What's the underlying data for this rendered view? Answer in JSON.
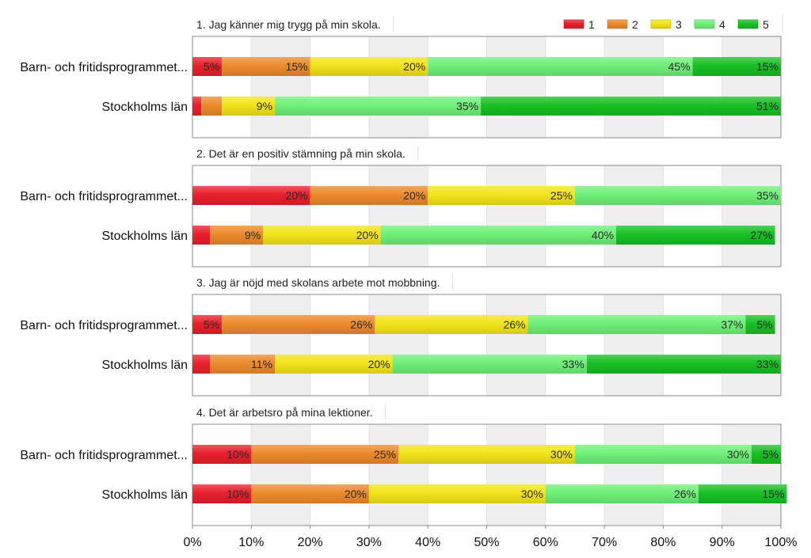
{
  "chart_data": {
    "type": "bar",
    "stacked": "percent",
    "orientation": "horizontal",
    "legend": {
      "position": "top-right",
      "entries": [
        "1",
        "2",
        "3",
        "4",
        "5"
      ],
      "colors": [
        "#e8202c",
        "#ec8a2c",
        "#f2e41a",
        "#6ff078",
        "#18c024"
      ]
    },
    "x_axis": {
      "range": [
        0,
        100
      ],
      "ticks": [
        "0%",
        "10%",
        "20%",
        "30%",
        "40%",
        "50%",
        "60%",
        "70%",
        "80%",
        "90%",
        "100%"
      ]
    },
    "panels": [
      {
        "title": "1. Jag känner mig trygg på min skola.",
        "rows": [
          {
            "label": "Barn- och fritidsprogrammet...",
            "values": [
              5,
              15,
              20,
              45,
              15
            ],
            "labels": [
              "5%",
              "15%",
              "20%",
              "45%",
              "15%"
            ]
          },
          {
            "label": "Stockholms län",
            "values": [
              1.5,
              3.5,
              9,
              35,
              51
            ],
            "labels": [
              "",
              "",
              "9%",
              "35%",
              "51%"
            ]
          }
        ]
      },
      {
        "title": "2. Det är en positiv stämning på min skola.",
        "rows": [
          {
            "label": "Barn- och fritidsprogrammet...",
            "values": [
              20,
              20,
              25,
              35,
              0
            ],
            "labels": [
              "20%",
              "20%",
              "25%",
              "35%",
              ""
            ]
          },
          {
            "label": "Stockholms län",
            "values": [
              3,
              9,
              20,
              40,
              27
            ],
            "labels": [
              "",
              "9%",
              "20%",
              "40%",
              "27%"
            ]
          }
        ]
      },
      {
        "title": "3. Jag är nöjd med skolans arbete mot mobbning.",
        "rows": [
          {
            "label": "Barn- och fritidsprogrammet...",
            "values": [
              5,
              26,
              26,
              37,
              5
            ],
            "labels": [
              "5%",
              "26%",
              "26%",
              "37%",
              "5%"
            ]
          },
          {
            "label": "Stockholms län",
            "values": [
              3,
              11,
              20,
              33,
              33
            ],
            "labels": [
              "",
              "11%",
              "20%",
              "33%",
              "33%"
            ]
          }
        ]
      },
      {
        "title": "4. Det är arbetsro på mina lektioner.",
        "rows": [
          {
            "label": "Barn- och fritidsprogrammet...",
            "values": [
              10,
              25,
              30,
              30,
              5
            ],
            "labels": [
              "10%",
              "25%",
              "30%",
              "30%",
              "5%"
            ]
          },
          {
            "label": "Stockholms län",
            "values": [
              10,
              20,
              30,
              26,
              15
            ],
            "labels": [
              "10%",
              "20%",
              "30%",
              "26%",
              "15%"
            ]
          }
        ]
      }
    ]
  }
}
